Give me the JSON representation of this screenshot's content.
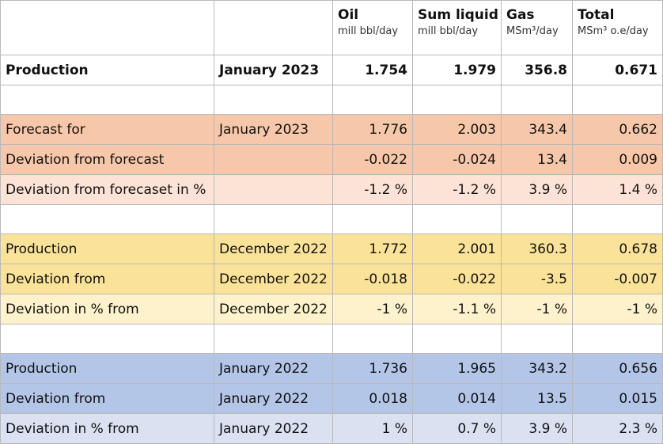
{
  "columns": [
    {
      "title": "",
      "unit": ""
    },
    {
      "title": "",
      "unit": ""
    },
    {
      "title": "Oil",
      "unit": "mill bbl/day"
    },
    {
      "title": "Sum liquid",
      "unit": "mill bbl/day"
    },
    {
      "title": "Gas",
      "unit": "MSm³/day"
    },
    {
      "title": "Total",
      "unit": "MSm³ o.e/day"
    }
  ],
  "rows": [
    {
      "label": "Production",
      "period": "January 2023",
      "oil": "1.754",
      "sum_liquid": "1.979",
      "gas": "356.8",
      "total": "0.671"
    },
    {
      "label": "",
      "period": "",
      "oil": "",
      "sum_liquid": "",
      "gas": "",
      "total": ""
    },
    {
      "label": "Forecast for",
      "period": "January 2023",
      "oil": "1.776",
      "sum_liquid": "2.003",
      "gas": "343.4",
      "total": "0.662"
    },
    {
      "label": "Deviation from forecast",
      "period": "",
      "oil": "-0.022",
      "sum_liquid": "-0.024",
      "gas": "13.4",
      "total": "0.009"
    },
    {
      "label": "Deviation from forecaset in %",
      "period": "",
      "oil": "-1.2 %",
      "sum_liquid": "-1.2 %",
      "gas": "3.9 %",
      "total": "1.4 %"
    },
    {
      "label": "",
      "period": "",
      "oil": "",
      "sum_liquid": "",
      "gas": "",
      "total": ""
    },
    {
      "label": "Production",
      "period": "December 2022",
      "oil": "1.772",
      "sum_liquid": "2.001",
      "gas": "360.3",
      "total": "0.678"
    },
    {
      "label": "Deviation from",
      "period": "December 2022",
      "oil": "-0.018",
      "sum_liquid": "-0.022",
      "gas": "-3.5",
      "total": "-0.007"
    },
    {
      "label": "Deviation in % from",
      "period": "December 2022",
      "oil": "-1 %",
      "sum_liquid": "-1.1 %",
      "gas": "-1 %",
      "total": "-1 %"
    },
    {
      "label": "",
      "period": "",
      "oil": "",
      "sum_liquid": "",
      "gas": "",
      "total": ""
    },
    {
      "label": "Production",
      "period": "January 2022",
      "oil": "1.736",
      "sum_liquid": "1.965",
      "gas": "343.2",
      "total": "0.656"
    },
    {
      "label": "Deviation from",
      "period": "January 2022",
      "oil": "0.018",
      "sum_liquid": "0.014",
      "gas": "13.5",
      "total": "0.015"
    },
    {
      "label": "Deviation in % from",
      "period": "January 2022",
      "oil": "1 %",
      "sum_liquid": "0.7 %",
      "gas": "3.9 %",
      "total": "2.3 %"
    }
  ],
  "colors": {
    "forecast_band": "#f7c7a9",
    "forecast_band_light": "#fce3d6",
    "december_band": "#fae399",
    "december_band_light": "#fdf2cc",
    "january_2022_band": "#b4c6e7",
    "january_2022_band_light": "#dae2f2",
    "grid_line": "#b9b9b9"
  }
}
